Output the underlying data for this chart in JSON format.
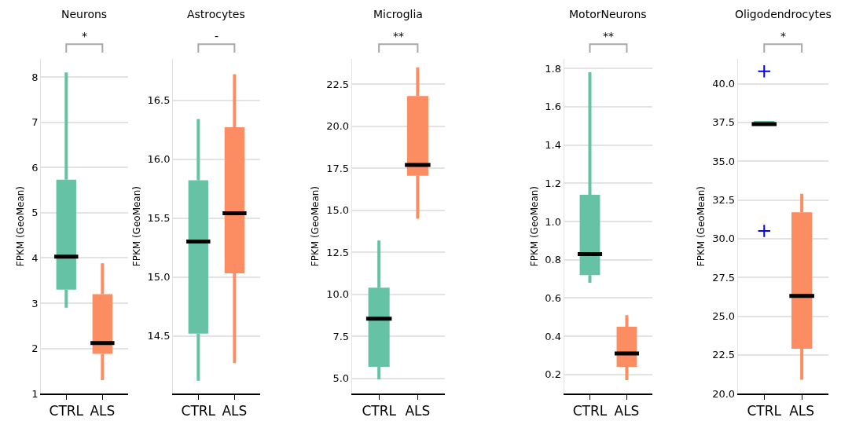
{
  "chart_data": [
    {
      "type": "box",
      "title": "Neurons",
      "ylabel": "FPKM (GeoMean)",
      "categories": [
        "CTRL",
        "ALS"
      ],
      "colors": [
        "#66c2a5",
        "#fc8d62"
      ],
      "ylim": [
        1,
        8.4
      ],
      "yticks": [
        1,
        2,
        3,
        4,
        5,
        6,
        7,
        8
      ],
      "grid": "y",
      "annotations": [
        "*"
      ],
      "boxes": [
        {
          "low": 2.9,
          "q1": 3.3,
          "median": 4.03,
          "q3": 5.73,
          "high": 8.1
        },
        {
          "low": 1.3,
          "q1": 1.88,
          "median": 2.12,
          "q3": 3.2,
          "high": 3.88
        }
      ]
    },
    {
      "type": "box",
      "title": "Astrocytes",
      "ylabel": "FPKM (GeoMean)",
      "categories": [
        "CTRL",
        "ALS"
      ],
      "colors": [
        "#66c2a5",
        "#fc8d62"
      ],
      "ylim": [
        14.01,
        16.85
      ],
      "yticks": [
        {
          "value": 14.5,
          "label": "14.5"
        },
        {
          "value": 15,
          "label": "15.0"
        },
        {
          "value": 15.5,
          "label": "15.5"
        },
        {
          "value": 16,
          "label": "16.0"
        },
        {
          "value": 16.5,
          "label": "16.5"
        }
      ],
      "grid": "y",
      "annotations": [
        "-"
      ],
      "boxes": [
        {
          "low": 14.12,
          "q1": 14.52,
          "median": 15.3,
          "q3": 15.82,
          "high": 16.34
        },
        {
          "low": 14.27,
          "q1": 15.03,
          "median": 15.54,
          "q3": 16.27,
          "high": 16.72
        }
      ]
    },
    {
      "type": "box",
      "title": "Microglia",
      "ylabel": "FPKM (GeoMean)",
      "categories": [
        "CTRL",
        "ALS"
      ],
      "colors": [
        "#66c2a5",
        "#fc8d62"
      ],
      "ylim": [
        4.1,
        24.0
      ],
      "yticks": [
        {
          "value": 5,
          "label": "5.0"
        },
        {
          "value": 7.5,
          "label": "7.5"
        },
        {
          "value": 10,
          "label": "10.0"
        },
        {
          "value": 12.5,
          "label": "12.5"
        },
        {
          "value": 15,
          "label": "15.0"
        },
        {
          "value": 17.5,
          "label": "17.5"
        },
        {
          "value": 20,
          "label": "20.0"
        },
        {
          "value": 22.5,
          "label": "22.5"
        }
      ],
      "grid": "y",
      "annotations": [
        "**"
      ],
      "boxes": [
        {
          "low": 4.95,
          "q1": 5.7,
          "median": 8.55,
          "q3": 10.4,
          "high": 13.2
        },
        {
          "low": 14.5,
          "q1": 17.05,
          "median": 17.7,
          "q3": 21.8,
          "high": 23.5
        }
      ]
    },
    {
      "type": "box",
      "title": "MotorNeurons",
      "ylabel": "FPKM (GeoMean)",
      "categories": [
        "CTRL",
        "ALS"
      ],
      "colors": [
        "#66c2a5",
        "#fc8d62"
      ],
      "ylim": [
        0.1,
        1.85
      ],
      "yticks": [
        0.2,
        0.4,
        0.6,
        0.8,
        {
          "value": 1,
          "label": "1.0"
        },
        1.2,
        1.4,
        1.6,
        1.8
      ],
      "grid": "y",
      "annotations": [
        "**"
      ],
      "boxes": [
        {
          "low": 0.68,
          "q1": 0.72,
          "median": 0.83,
          "q3": 1.14,
          "high": 1.78
        },
        {
          "low": 0.17,
          "q1": 0.24,
          "median": 0.31,
          "q3": 0.45,
          "high": 0.51
        }
      ]
    },
    {
      "type": "box",
      "title": "Oligodendrocytes",
      "ylabel": "FPKM (GeoMean)",
      "categories": [
        "CTRL",
        "ALS"
      ],
      "colors": [
        "#66c2a5",
        "#fc8d62"
      ],
      "ylim": [
        20,
        41.6
      ],
      "yticks": [
        {
          "value": 20,
          "label": "20.0"
        },
        {
          "value": 22.5,
          "label": "22.5"
        },
        {
          "value": 25,
          "label": "25.0"
        },
        {
          "value": 27.5,
          "label": "27.5"
        },
        {
          "value": 30,
          "label": "30.0"
        },
        {
          "value": 32.5,
          "label": "32.5"
        },
        {
          "value": 35,
          "label": "35.0"
        },
        {
          "value": 37.5,
          "label": "37.5"
        },
        {
          "value": 40,
          "label": "40.0"
        }
      ],
      "grid": "y",
      "annotations": [
        "*"
      ],
      "boxes": [
        {
          "low": 37.4,
          "q1": 37.4,
          "median": 37.4,
          "q3": 37.6,
          "high": 37.6,
          "outliers": [
            40.8,
            30.5
          ]
        },
        {
          "low": 20.9,
          "q1": 22.9,
          "median": 26.3,
          "q3": 31.7,
          "high": 32.9
        }
      ]
    }
  ]
}
